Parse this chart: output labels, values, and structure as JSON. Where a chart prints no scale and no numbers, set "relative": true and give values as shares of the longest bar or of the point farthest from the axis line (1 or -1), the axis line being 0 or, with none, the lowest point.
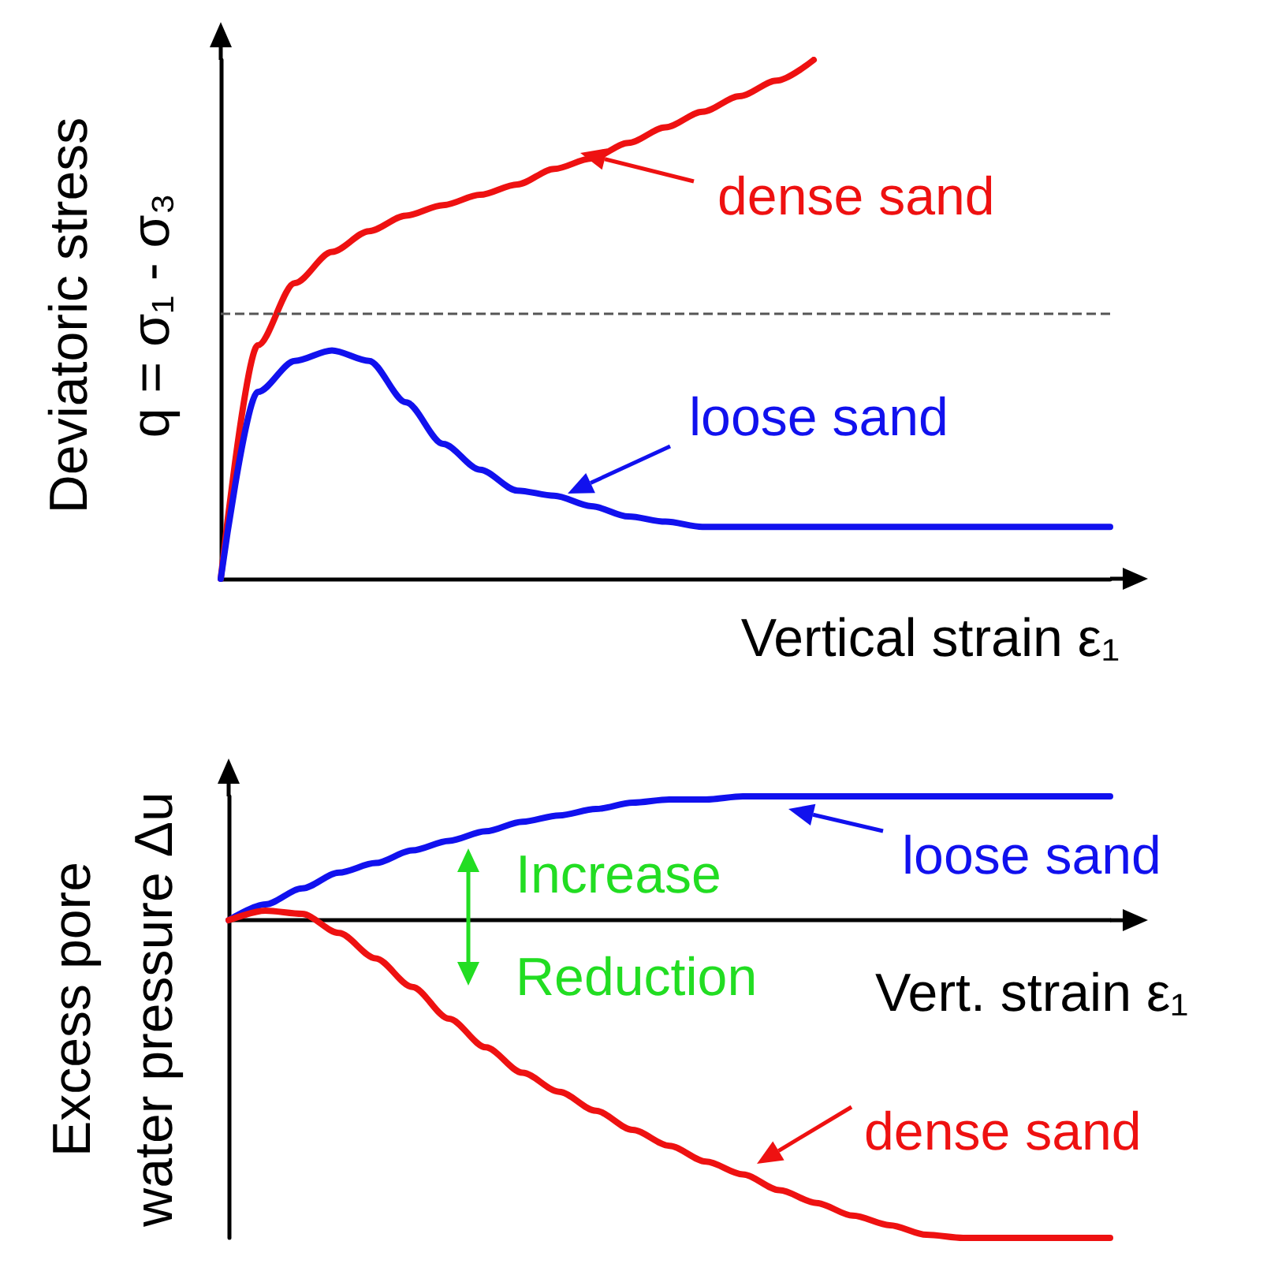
{
  "chart_data": [
    {
      "type": "line",
      "relative": true,
      "xlabel": "Vertical strain ε₁",
      "ylabel": "Deviatoric stress\nq = σ₁ - σ₃",
      "legend": "right",
      "grid": false,
      "categories": [
        null,
        null,
        null,
        null,
        null,
        null,
        null,
        null,
        null,
        null,
        null,
        null,
        null,
        null,
        null,
        null,
        null,
        null,
        null,
        null,
        null,
        null,
        null,
        null,
        null
      ],
      "series": [
        {
          "name": "dense sand",
          "color": "#ee1111",
          "values": [
            0,
            0.45,
            0.57,
            0.63,
            0.67,
            0.7,
            0.72,
            0.74,
            0.76,
            0.79,
            0.81,
            0.84,
            0.87,
            0.9,
            0.93,
            0.96,
            1,
            null,
            null,
            null,
            null,
            null,
            null,
            null,
            null
          ]
        },
        {
          "name": "loose sand",
          "color": "#1111ee",
          "values": [
            0,
            0.36,
            0.42,
            0.44,
            0.42,
            0.34,
            0.26,
            0.21,
            0.17,
            0.16,
            0.14,
            0.12,
            0.11,
            0.1,
            0.1,
            0.1,
            0.1,
            0.1,
            0.1,
            0.1,
            0.1,
            0.1,
            0.1,
            0.1,
            0.1
          ]
        }
      ],
      "ref_lines": [
        {
          "axis": "y",
          "value": 0.51,
          "color": "#555555",
          "line_style": "dashed"
        }
      ]
    },
    {
      "type": "line",
      "relative": true,
      "xlabel": "Vert. strain ε₁",
      "ylabel": "Excess pore\nwater pressure Δu",
      "legend": "right",
      "grid": false,
      "annotations": [
        "Increase",
        "Reduction"
      ],
      "categories": [
        null,
        null,
        null,
        null,
        null,
        null,
        null,
        null,
        null,
        null,
        null,
        null,
        null,
        null,
        null,
        null,
        null,
        null,
        null,
        null,
        null,
        null,
        null,
        null,
        null
      ],
      "series": [
        {
          "name": "loose sand",
          "color": "#1111ee",
          "values": [
            0,
            0.05,
            0.1,
            0.15,
            0.18,
            0.22,
            0.25,
            0.28,
            0.31,
            0.33,
            0.35,
            0.37,
            0.38,
            0.38,
            0.39,
            0.39,
            0.39,
            0.39,
            0.39,
            0.39,
            0.39,
            0.39,
            0.39,
            0.39,
            0.39
          ]
        },
        {
          "name": "dense sand",
          "color": "#ee1111",
          "values": [
            0,
            0.03,
            0.02,
            -0.04,
            -0.12,
            -0.21,
            -0.31,
            -0.4,
            -0.48,
            -0.54,
            -0.6,
            -0.66,
            -0.71,
            -0.76,
            -0.8,
            -0.85,
            -0.89,
            -0.93,
            -0.96,
            -0.99,
            -1,
            -1,
            -1,
            -1,
            -1
          ]
        }
      ]
    }
  ]
}
